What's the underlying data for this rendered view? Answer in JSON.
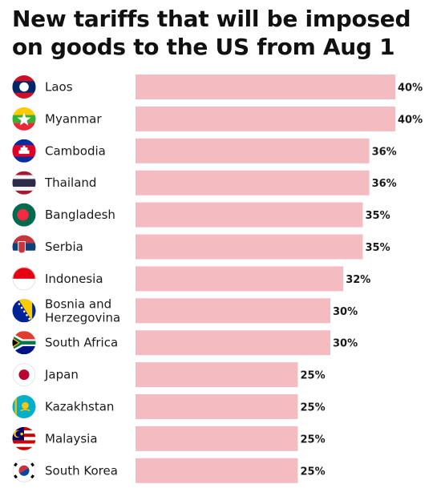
{
  "title": "New tariffs that will be imposed on goods to the US from Aug 1",
  "colors": {
    "bar": "#f4bcc1",
    "text": "#1a1a1a"
  },
  "chart_data": {
    "type": "bar",
    "orientation": "horizontal",
    "title": "New tariffs that will be imposed on goods to the US from Aug 1",
    "categories": [
      "Laos",
      "Myanmar",
      "Cambodia",
      "Thailand",
      "Bangladesh",
      "Serbia",
      "Indonesia",
      "Bosnia and Herzegovina",
      "South Africa",
      "Japan",
      "Kazakhstan",
      "Malaysia",
      "South Korea"
    ],
    "category_lines": [
      [
        "Laos"
      ],
      [
        "Myanmar"
      ],
      [
        "Cambodia"
      ],
      [
        "Thailand"
      ],
      [
        "Bangladesh"
      ],
      [
        "Serbia"
      ],
      [
        "Indonesia"
      ],
      [
        "Bosnia and",
        "Herzegovina"
      ],
      [
        "South Africa"
      ],
      [
        "Japan"
      ],
      [
        "Kazakhstan"
      ],
      [
        "Malaysia"
      ],
      [
        "South Korea"
      ]
    ],
    "values": [
      40,
      40,
      36,
      36,
      35,
      35,
      32,
      30,
      30,
      25,
      25,
      25,
      25
    ],
    "value_labels": [
      "40%",
      "40%",
      "36%",
      "36%",
      "35%",
      "35%",
      "32%",
      "30%",
      "30%",
      "25%",
      "25%",
      "25%",
      "25%"
    ],
    "icons": [
      "flag-laos-icon",
      "flag-myanmar-icon",
      "flag-cambodia-icon",
      "flag-thailand-icon",
      "flag-bangladesh-icon",
      "flag-serbia-icon",
      "flag-indonesia-icon",
      "flag-bosnia-icon",
      "flag-south-africa-icon",
      "flag-japan-icon",
      "flag-kazakhstan-icon",
      "flag-malaysia-icon",
      "flag-south-korea-icon"
    ],
    "xlim": [
      0,
      40
    ],
    "grid": false,
    "xlabel": "",
    "ylabel": ""
  }
}
